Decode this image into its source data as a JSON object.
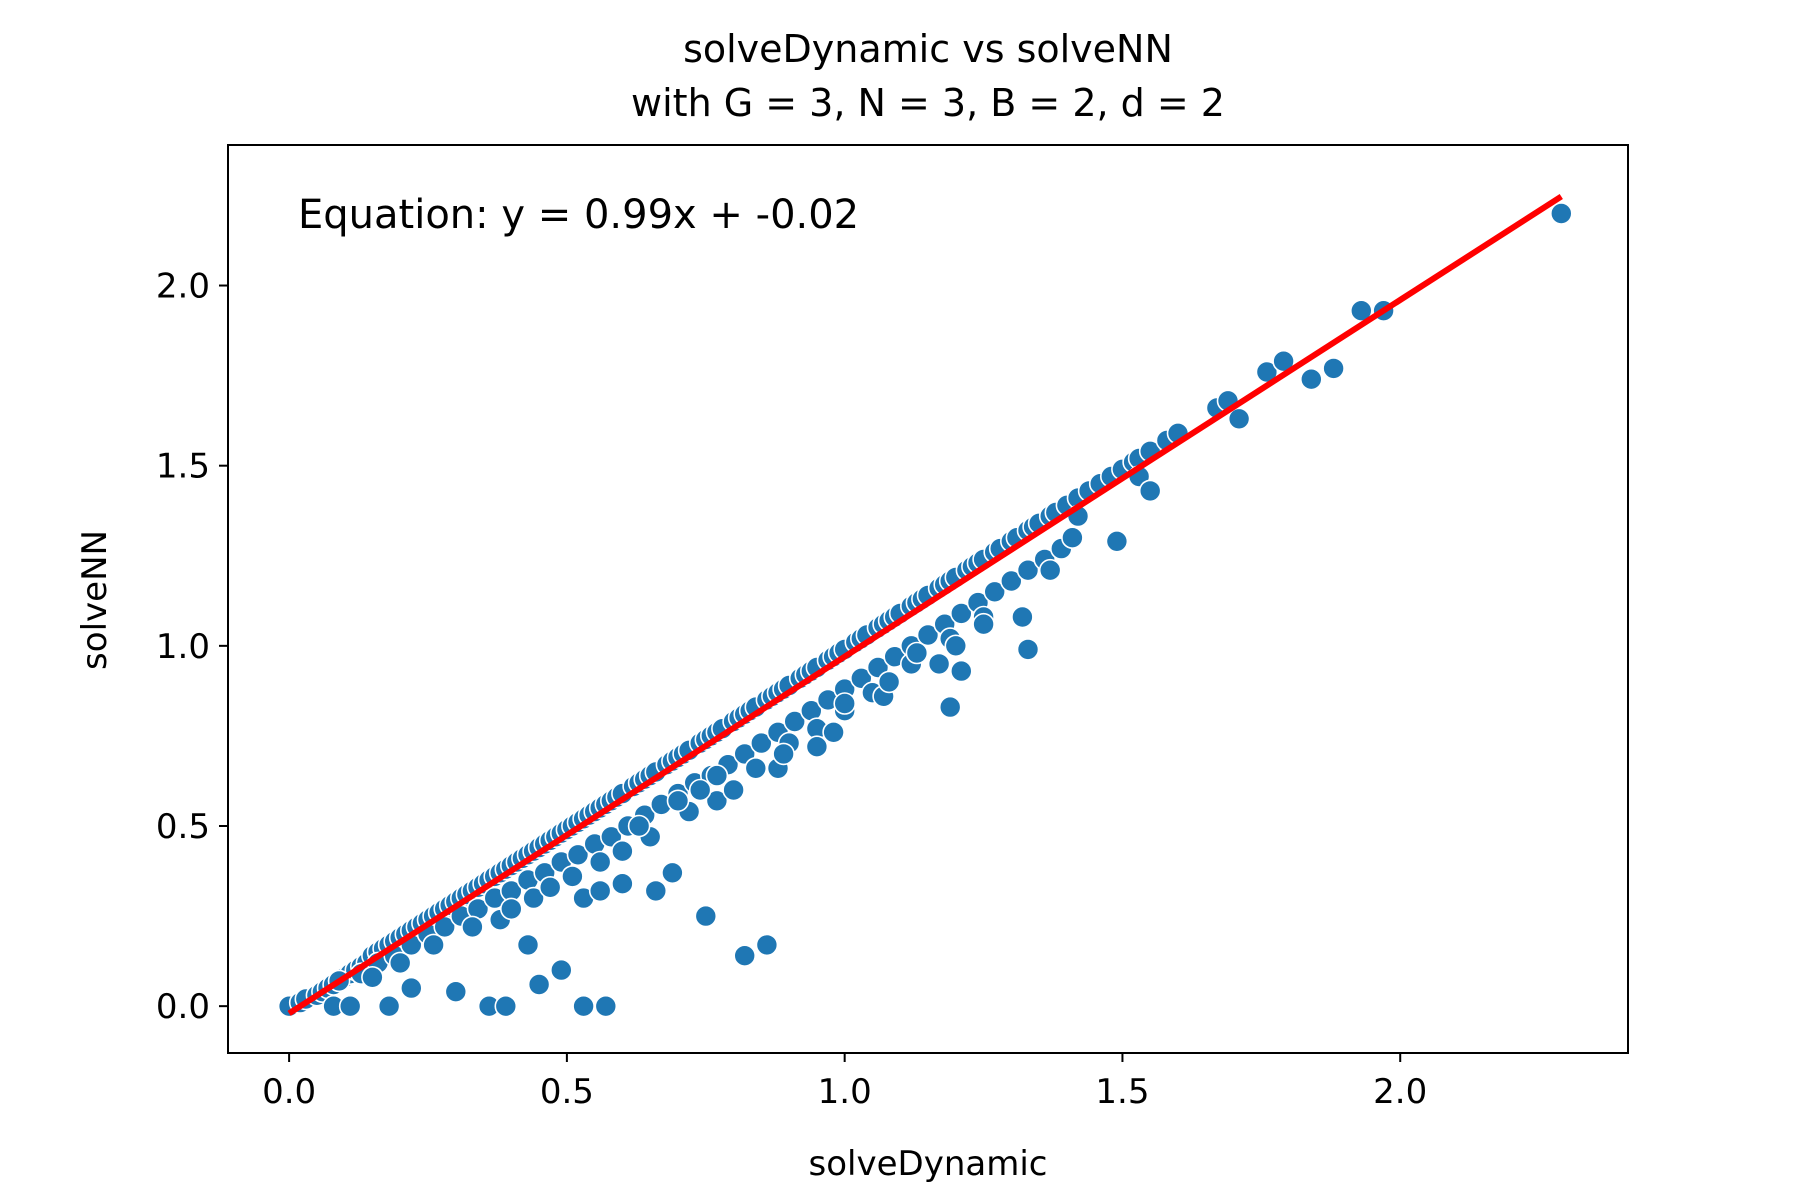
{
  "chart_data": {
    "type": "scatter",
    "title": "solveDynamic vs solveNN",
    "subtitle": "with G = 3, N = 3, B = 2, d = 2",
    "xlabel": "solveDynamic",
    "ylabel": "solveNN",
    "xlim": [
      -0.11,
      2.41
    ],
    "ylim": [
      -0.13,
      2.39
    ],
    "x_ticks": [
      0.0,
      0.5,
      1.0,
      1.5,
      2.0
    ],
    "x_tick_labels": [
      "0.0",
      "0.5",
      "1.0",
      "1.5",
      "2.0"
    ],
    "y_ticks": [
      0.0,
      0.5,
      1.0,
      1.5,
      2.0
    ],
    "y_tick_labels": [
      "0.0",
      "0.5",
      "1.0",
      "1.5",
      "2.0"
    ],
    "grid": false,
    "marker_color": "#1f77b4",
    "marker_edge_color": "#ffffff",
    "fit_line": {
      "label": "Equation: y = 0.99x + -0.02",
      "slope": 0.99,
      "intercept": -0.02,
      "x_range": [
        0.0,
        2.29
      ],
      "color": "#ff0000"
    },
    "points": [
      [
        0.0,
        0.0
      ],
      [
        0.02,
        0.01
      ],
      [
        0.03,
        0.02
      ],
      [
        0.05,
        0.03
      ],
      [
        0.06,
        0.04
      ],
      [
        0.07,
        0.05
      ],
      [
        0.08,
        0.06
      ],
      [
        0.09,
        0.07
      ],
      [
        0.1,
        0.08
      ],
      [
        0.11,
        0.09
      ],
      [
        0.12,
        0.1
      ],
      [
        0.13,
        0.11
      ],
      [
        0.14,
        0.12
      ],
      [
        0.15,
        0.14
      ],
      [
        0.16,
        0.15
      ],
      [
        0.17,
        0.16
      ],
      [
        0.18,
        0.17
      ],
      [
        0.19,
        0.18
      ],
      [
        0.2,
        0.19
      ],
      [
        0.21,
        0.2
      ],
      [
        0.22,
        0.21
      ],
      [
        0.23,
        0.22
      ],
      [
        0.24,
        0.23
      ],
      [
        0.25,
        0.24
      ],
      [
        0.26,
        0.25
      ],
      [
        0.27,
        0.26
      ],
      [
        0.28,
        0.27
      ],
      [
        0.29,
        0.28
      ],
      [
        0.3,
        0.29
      ],
      [
        0.31,
        0.3
      ],
      [
        0.32,
        0.31
      ],
      [
        0.33,
        0.32
      ],
      [
        0.34,
        0.33
      ],
      [
        0.35,
        0.34
      ],
      [
        0.36,
        0.35
      ],
      [
        0.37,
        0.36
      ],
      [
        0.38,
        0.37
      ],
      [
        0.39,
        0.38
      ],
      [
        0.4,
        0.39
      ],
      [
        0.41,
        0.4
      ],
      [
        0.42,
        0.41
      ],
      [
        0.43,
        0.42
      ],
      [
        0.44,
        0.43
      ],
      [
        0.45,
        0.44
      ],
      [
        0.46,
        0.45
      ],
      [
        0.47,
        0.46
      ],
      [
        0.48,
        0.47
      ],
      [
        0.49,
        0.48
      ],
      [
        0.5,
        0.49
      ],
      [
        0.51,
        0.5
      ],
      [
        0.52,
        0.51
      ],
      [
        0.53,
        0.52
      ],
      [
        0.54,
        0.53
      ],
      [
        0.55,
        0.54
      ],
      [
        0.56,
        0.55
      ],
      [
        0.57,
        0.56
      ],
      [
        0.58,
        0.57
      ],
      [
        0.59,
        0.58
      ],
      [
        0.6,
        0.59
      ],
      [
        0.62,
        0.61
      ],
      [
        0.63,
        0.62
      ],
      [
        0.64,
        0.63
      ],
      [
        0.65,
        0.64
      ],
      [
        0.66,
        0.65
      ],
      [
        0.68,
        0.67
      ],
      [
        0.69,
        0.68
      ],
      [
        0.7,
        0.69
      ],
      [
        0.71,
        0.7
      ],
      [
        0.72,
        0.71
      ],
      [
        0.74,
        0.73
      ],
      [
        0.75,
        0.74
      ],
      [
        0.76,
        0.75
      ],
      [
        0.77,
        0.76
      ],
      [
        0.78,
        0.77
      ],
      [
        0.8,
        0.79
      ],
      [
        0.81,
        0.8
      ],
      [
        0.82,
        0.81
      ],
      [
        0.83,
        0.82
      ],
      [
        0.84,
        0.83
      ],
      [
        0.86,
        0.85
      ],
      [
        0.87,
        0.86
      ],
      [
        0.88,
        0.87
      ],
      [
        0.89,
        0.88
      ],
      [
        0.9,
        0.89
      ],
      [
        0.92,
        0.91
      ],
      [
        0.93,
        0.92
      ],
      [
        0.94,
        0.93
      ],
      [
        0.95,
        0.94
      ],
      [
        0.97,
        0.96
      ],
      [
        0.98,
        0.97
      ],
      [
        0.99,
        0.98
      ],
      [
        1.0,
        0.99
      ],
      [
        1.02,
        1.01
      ],
      [
        1.03,
        1.02
      ],
      [
        1.04,
        1.03
      ],
      [
        1.06,
        1.05
      ],
      [
        1.07,
        1.06
      ],
      [
        1.08,
        1.07
      ],
      [
        1.09,
        1.08
      ],
      [
        1.1,
        1.09
      ],
      [
        1.12,
        1.11
      ],
      [
        1.13,
        1.12
      ],
      [
        1.14,
        1.13
      ],
      [
        1.15,
        1.14
      ],
      [
        1.17,
        1.16
      ],
      [
        1.18,
        1.17
      ],
      [
        1.19,
        1.18
      ],
      [
        1.2,
        1.19
      ],
      [
        1.22,
        1.21
      ],
      [
        1.23,
        1.22
      ],
      [
        1.24,
        1.23
      ],
      [
        1.25,
        1.24
      ],
      [
        1.27,
        1.26
      ],
      [
        1.28,
        1.27
      ],
      [
        1.3,
        1.29
      ],
      [
        1.31,
        1.3
      ],
      [
        1.33,
        1.32
      ],
      [
        1.34,
        1.33
      ],
      [
        1.35,
        1.34
      ],
      [
        1.37,
        1.36
      ],
      [
        1.38,
        1.37
      ],
      [
        1.4,
        1.39
      ],
      [
        1.42,
        1.41
      ],
      [
        1.44,
        1.43
      ],
      [
        1.46,
        1.45
      ],
      [
        1.48,
        1.47
      ],
      [
        1.5,
        1.49
      ],
      [
        1.52,
        1.51
      ],
      [
        1.53,
        1.52
      ],
      [
        1.55,
        1.54
      ],
      [
        1.58,
        1.57
      ],
      [
        1.6,
        1.59
      ],
      [
        1.67,
        1.66
      ],
      [
        1.69,
        1.68
      ],
      [
        0.09,
        0.07
      ],
      [
        0.13,
        0.09
      ],
      [
        0.16,
        0.12
      ],
      [
        0.19,
        0.14
      ],
      [
        0.22,
        0.17
      ],
      [
        0.25,
        0.2
      ],
      [
        0.28,
        0.22
      ],
      [
        0.31,
        0.25
      ],
      [
        0.34,
        0.27
      ],
      [
        0.37,
        0.3
      ],
      [
        0.4,
        0.32
      ],
      [
        0.43,
        0.35
      ],
      [
        0.46,
        0.37
      ],
      [
        0.49,
        0.4
      ],
      [
        0.52,
        0.42
      ],
      [
        0.55,
        0.45
      ],
      [
        0.58,
        0.47
      ],
      [
        0.61,
        0.5
      ],
      [
        0.64,
        0.53
      ],
      [
        0.67,
        0.56
      ],
      [
        0.7,
        0.59
      ],
      [
        0.73,
        0.62
      ],
      [
        0.76,
        0.64
      ],
      [
        0.79,
        0.67
      ],
      [
        0.82,
        0.7
      ],
      [
        0.85,
        0.73
      ],
      [
        0.88,
        0.76
      ],
      [
        0.91,
        0.79
      ],
      [
        0.94,
        0.82
      ],
      [
        0.97,
        0.85
      ],
      [
        1.0,
        0.88
      ],
      [
        1.03,
        0.91
      ],
      [
        1.06,
        0.94
      ],
      [
        1.09,
        0.97
      ],
      [
        1.12,
        1.0
      ],
      [
        1.15,
        1.03
      ],
      [
        1.18,
        1.06
      ],
      [
        1.21,
        1.09
      ],
      [
        1.24,
        1.12
      ],
      [
        1.27,
        1.15
      ],
      [
        1.3,
        1.18
      ],
      [
        1.33,
        1.21
      ],
      [
        1.36,
        1.24
      ],
      [
        1.39,
        1.27
      ],
      [
        0.15,
        0.08
      ],
      [
        0.2,
        0.12
      ],
      [
        0.26,
        0.17
      ],
      [
        0.33,
        0.22
      ],
      [
        0.38,
        0.24
      ],
      [
        0.44,
        0.3
      ],
      [
        0.47,
        0.33
      ],
      [
        0.51,
        0.36
      ],
      [
        0.56,
        0.4
      ],
      [
        0.6,
        0.43
      ],
      [
        0.65,
        0.47
      ],
      [
        0.72,
        0.54
      ],
      [
        0.77,
        0.57
      ],
      [
        0.8,
        0.6
      ],
      [
        0.84,
        0.66
      ],
      [
        0.9,
        0.73
      ],
      [
        0.95,
        0.77
      ],
      [
        1.0,
        0.82
      ],
      [
        1.05,
        0.87
      ],
      [
        1.12,
        0.95
      ],
      [
        1.19,
        1.02
      ],
      [
        1.25,
        1.08
      ],
      [
        0.08,
        0.0
      ],
      [
        0.11,
        0.0
      ],
      [
        0.18,
        0.0
      ],
      [
        0.36,
        0.0
      ],
      [
        0.39,
        0.0
      ],
      [
        0.53,
        0.0
      ],
      [
        0.57,
        0.0
      ],
      [
        0.22,
        0.05
      ],
      [
        0.3,
        0.04
      ],
      [
        0.45,
        0.06
      ],
      [
        0.49,
        0.1
      ],
      [
        0.43,
        0.17
      ],
      [
        0.4,
        0.27
      ],
      [
        0.53,
        0.3
      ],
      [
        0.56,
        0.32
      ],
      [
        0.6,
        0.34
      ],
      [
        0.66,
        0.32
      ],
      [
        0.69,
        0.37
      ],
      [
        0.75,
        0.25
      ],
      [
        0.82,
        0.14
      ],
      [
        0.86,
        0.17
      ],
      [
        0.63,
        0.5
      ],
      [
        0.7,
        0.57
      ],
      [
        0.74,
        0.6
      ],
      [
        0.77,
        0.64
      ],
      [
        0.88,
        0.66
      ],
      [
        0.89,
        0.7
      ],
      [
        0.95,
        0.72
      ],
      [
        0.98,
        0.76
      ],
      [
        1.0,
        0.84
      ],
      [
        1.07,
        0.86
      ],
      [
        1.08,
        0.9
      ],
      [
        1.13,
        0.98
      ],
      [
        1.17,
        0.95
      ],
      [
        1.19,
        0.83
      ],
      [
        1.2,
        1.0
      ],
      [
        1.21,
        0.93
      ],
      [
        1.25,
        1.06
      ],
      [
        1.32,
        1.08
      ],
      [
        1.33,
        0.99
      ],
      [
        1.37,
        1.21
      ],
      [
        1.41,
        1.3
      ],
      [
        1.42,
        1.36
      ],
      [
        1.49,
        1.29
      ],
      [
        1.53,
        1.47
      ],
      [
        1.55,
        1.43
      ],
      [
        1.71,
        1.63
      ],
      [
        1.76,
        1.76
      ],
      [
        1.79,
        1.79
      ],
      [
        1.84,
        1.74
      ],
      [
        1.88,
        1.77
      ],
      [
        1.93,
        1.93
      ],
      [
        1.97,
        1.93
      ],
      [
        2.29,
        2.2
      ]
    ]
  }
}
